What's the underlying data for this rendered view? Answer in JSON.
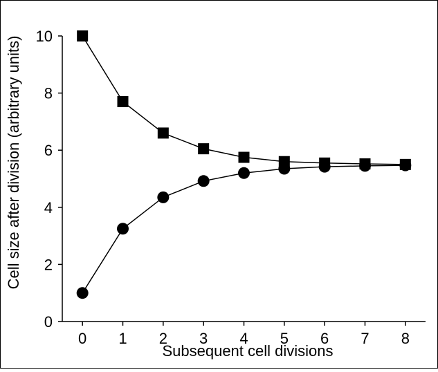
{
  "chart_data": {
    "type": "line",
    "title": "",
    "xlabel": "Subsequent cell divisions",
    "ylabel": "Cell size after division (arbitrary units)",
    "x": [
      0,
      1,
      2,
      3,
      4,
      5,
      6,
      7,
      8
    ],
    "xlim": [
      -0.5,
      8.5
    ],
    "ylim": [
      0,
      10
    ],
    "xticks": [
      "0",
      "1",
      "2",
      "3",
      "4",
      "5",
      "6",
      "7",
      "8"
    ],
    "yticks": [
      "0",
      "2",
      "4",
      "6",
      "8",
      "10"
    ],
    "grid": false,
    "legend": "none",
    "series": [
      {
        "marker": "square",
        "color": "#000000",
        "values": [
          10,
          7.7,
          6.6,
          6.05,
          5.75,
          5.6,
          5.55,
          5.52,
          5.5
        ]
      },
      {
        "marker": "circle",
        "color": "#000000",
        "values": [
          1.0,
          3.25,
          4.35,
          4.92,
          5.2,
          5.35,
          5.42,
          5.45,
          5.47
        ]
      }
    ]
  }
}
